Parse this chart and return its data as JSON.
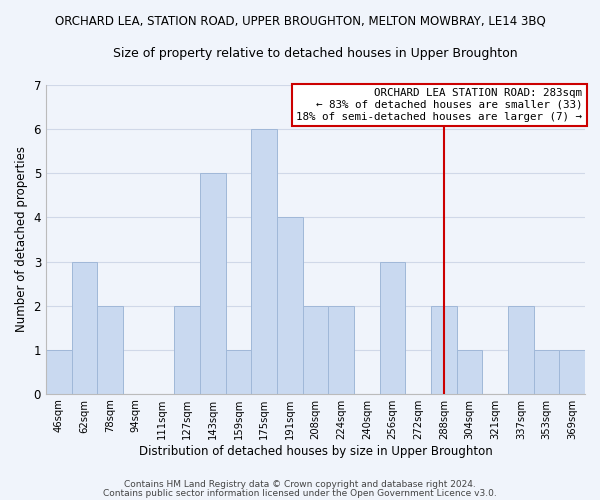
{
  "title_top": "ORCHARD LEA, STATION ROAD, UPPER BROUGHTON, MELTON MOWBRAY, LE14 3BQ",
  "title_sub": "Size of property relative to detached houses in Upper Broughton",
  "xlabel": "Distribution of detached houses by size in Upper Broughton",
  "ylabel": "Number of detached properties",
  "bin_labels": [
    "46sqm",
    "62sqm",
    "78sqm",
    "94sqm",
    "111sqm",
    "127sqm",
    "143sqm",
    "159sqm",
    "175sqm",
    "191sqm",
    "208sqm",
    "224sqm",
    "240sqm",
    "256sqm",
    "272sqm",
    "288sqm",
    "304sqm",
    "321sqm",
    "337sqm",
    "353sqm",
    "369sqm"
  ],
  "bar_values": [
    1,
    3,
    2,
    0,
    0,
    2,
    5,
    1,
    6,
    4,
    2,
    2,
    0,
    3,
    0,
    2,
    1,
    0,
    2,
    1,
    1
  ],
  "bar_color": "#c9d9f0",
  "bar_edge_color": "#a0b8d8",
  "ylim": [
    0,
    7
  ],
  "yticks": [
    0,
    1,
    2,
    3,
    4,
    5,
    6,
    7
  ],
  "vline_color": "#cc0000",
  "vline_index": 15,
  "annotation_line0": "ORCHARD LEA STATION ROAD: 283sqm",
  "annotation_line1": "← 83% of detached houses are smaller (33)",
  "annotation_line2": "18% of semi-detached houses are larger (7) →",
  "footer1": "Contains HM Land Registry data © Crown copyright and database right 2024.",
  "footer2": "Contains public sector information licensed under the Open Government Licence v3.0.",
  "background_color": "#f0f4fb",
  "grid_color": "#d0d8e8"
}
